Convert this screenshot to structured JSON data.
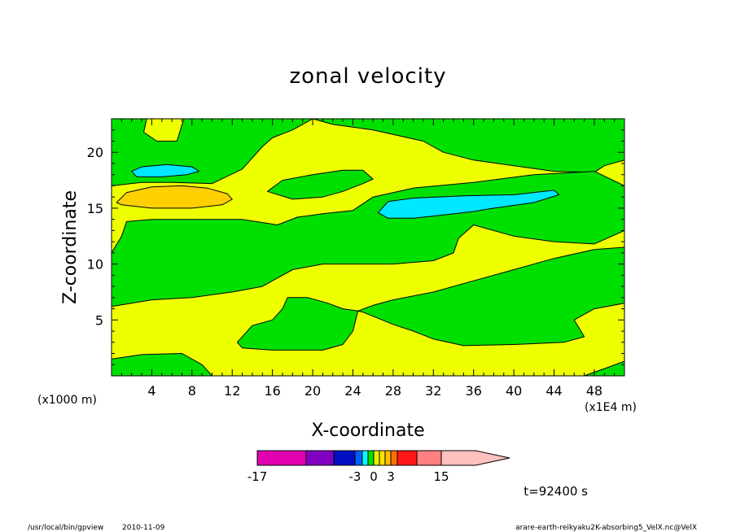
{
  "chart_data": {
    "type": "heatmap",
    "title": "zonal velocity",
    "xlabel": "X-coordinate",
    "ylabel": "Z-coordinate",
    "x_unit": "(x1E4 m)",
    "y_unit": "(x1000 m)",
    "xlim": [
      0,
      51
    ],
    "ylim": [
      0,
      23
    ],
    "x_ticks": [
      4,
      8,
      12,
      16,
      20,
      24,
      28,
      32,
      36,
      40,
      44,
      48
    ],
    "y_ticks": [
      5,
      10,
      15,
      20
    ],
    "colorbar": {
      "levels": [
        -17,
        -13,
        -9,
        -3,
        -2,
        -1,
        0,
        1,
        2,
        3,
        5,
        9,
        15
      ],
      "colors": [
        "#e000b0",
        "#8000c0",
        "#0010c0",
        "#0060ff",
        "#00ffff",
        "#00e000",
        "#e8f000",
        "#ffe000",
        "#ffc000",
        "#ff7000",
        "#ff1818",
        "#ff8080",
        "#ffc0c0"
      ],
      "labels": [
        "-17",
        "-3",
        "0",
        "3",
        "15"
      ]
    },
    "colors": {
      "positive_small": "#eeff00",
      "negative_small": "#00e000",
      "negative_mid": "#00e8ff",
      "positive_mid": "#ffd000"
    },
    "regions": [
      {
        "class": "negative_small",
        "poly": [
          [
            0,
            23
          ],
          [
            3.5,
            23
          ],
          [
            3.2,
            21.8
          ],
          [
            4.5,
            21
          ],
          [
            6.5,
            21
          ],
          [
            7.2,
            23
          ],
          [
            20,
            23
          ],
          [
            18,
            22
          ],
          [
            16,
            21.3
          ],
          [
            15,
            20.5
          ],
          [
            13,
            18.5
          ],
          [
            10,
            17.2
          ],
          [
            6,
            17.3
          ],
          [
            3,
            17.3
          ],
          [
            0,
            17
          ]
        ]
      },
      {
        "class": "negative_small",
        "poly": [
          [
            20,
            23
          ],
          [
            51,
            23
          ],
          [
            51,
            19.3
          ],
          [
            49,
            18.8
          ],
          [
            48,
            18.2
          ],
          [
            44,
            18.3
          ],
          [
            40,
            18.8
          ],
          [
            36,
            19.3
          ],
          [
            33,
            20
          ],
          [
            31,
            21
          ],
          [
            26,
            22
          ],
          [
            22,
            22.5
          ]
        ]
      },
      {
        "class": "negative_small",
        "poly": [
          [
            15.5,
            16.5
          ],
          [
            17,
            17.5
          ],
          [
            20,
            18
          ],
          [
            23,
            18.4
          ],
          [
            25,
            18.4
          ],
          [
            26,
            17.6
          ],
          [
            25,
            17.2
          ],
          [
            23,
            16.5
          ],
          [
            21,
            16
          ],
          [
            18,
            15.8
          ]
        ]
      },
      {
        "class": "negative_small",
        "poly": [
          [
            0,
            11
          ],
          [
            1,
            12.5
          ],
          [
            1.5,
            13.8
          ],
          [
            4,
            14
          ],
          [
            8,
            14
          ],
          [
            13,
            14
          ],
          [
            16.5,
            13.5
          ],
          [
            18.5,
            14.2
          ],
          [
            21,
            14.5
          ],
          [
            24,
            14.8
          ],
          [
            26,
            16
          ],
          [
            30,
            16.8
          ],
          [
            36,
            17.3
          ],
          [
            42,
            18
          ],
          [
            48,
            18.3
          ],
          [
            51,
            17
          ],
          [
            51,
            13
          ],
          [
            48,
            11.8
          ],
          [
            44,
            12
          ],
          [
            40,
            12.5
          ],
          [
            36,
            13.5
          ],
          [
            34.5,
            12.3
          ],
          [
            34,
            11
          ],
          [
            32,
            10.3
          ],
          [
            28,
            10
          ],
          [
            24,
            10
          ],
          [
            21,
            10
          ],
          [
            18,
            9.5
          ],
          [
            16,
            8.5
          ],
          [
            15,
            8
          ],
          [
            12,
            7.5
          ],
          [
            8,
            7
          ],
          [
            4,
            6.8
          ],
          [
            0,
            6.2
          ]
        ]
      },
      {
        "class": "negative_small",
        "poly": [
          [
            12.5,
            3
          ],
          [
            14,
            4.5
          ],
          [
            16,
            5
          ],
          [
            17,
            6
          ],
          [
            17.5,
            7
          ],
          [
            19.5,
            7
          ],
          [
            21.5,
            6.5
          ],
          [
            23,
            6
          ],
          [
            24.5,
            5.8
          ],
          [
            24,
            4
          ],
          [
            23,
            2.8
          ],
          [
            21,
            2.3
          ],
          [
            16,
            2.3
          ],
          [
            13,
            2.5
          ]
        ]
      },
      {
        "class": "negative_small",
        "poly": [
          [
            24.5,
            5.8
          ],
          [
            26,
            6.3
          ],
          [
            28,
            6.8
          ],
          [
            32,
            7.5
          ],
          [
            36,
            8.5
          ],
          [
            40,
            9.5
          ],
          [
            44,
            10.5
          ],
          [
            48,
            11.3
          ],
          [
            51,
            11.5
          ],
          [
            51,
            6.5
          ],
          [
            48,
            6
          ],
          [
            46,
            5
          ],
          [
            47,
            3.5
          ],
          [
            45,
            3
          ],
          [
            40,
            2.8
          ],
          [
            35,
            2.7
          ],
          [
            32,
            3.3
          ],
          [
            30,
            4
          ],
          [
            28,
            4.6
          ],
          [
            25,
            5.7
          ]
        ]
      },
      {
        "class": "negative_small",
        "poly": [
          [
            0,
            0
          ],
          [
            0,
            1.5
          ],
          [
            3,
            1.9
          ],
          [
            7,
            2
          ],
          [
            9,
            1
          ],
          [
            10,
            0
          ]
        ]
      },
      {
        "class": "negative_small",
        "poly": [
          [
            47,
            0
          ],
          [
            49.5,
            0.8
          ],
          [
            51,
            1.3
          ],
          [
            51,
            0
          ]
        ]
      },
      {
        "class": "negative_mid",
        "poly": [
          [
            2,
            18.3
          ],
          [
            3,
            18.7
          ],
          [
            5.5,
            18.9
          ],
          [
            8,
            18.7
          ],
          [
            8.7,
            18.3
          ],
          [
            7.5,
            18
          ],
          [
            5,
            17.8
          ],
          [
            2.5,
            17.8
          ]
        ]
      },
      {
        "class": "negative_mid",
        "poly": [
          [
            26.5,
            14.6
          ],
          [
            27.5,
            15.6
          ],
          [
            30,
            15.9
          ],
          [
            35,
            16.1
          ],
          [
            40,
            16.2
          ],
          [
            44,
            16.6
          ],
          [
            44.5,
            16.2
          ],
          [
            42,
            15.5
          ],
          [
            38,
            15
          ],
          [
            36,
            14.7
          ],
          [
            33,
            14.4
          ],
          [
            30,
            14.1
          ],
          [
            27.5,
            14.1
          ]
        ]
      },
      {
        "class": "positive_mid",
        "poly": [
          [
            0.5,
            15.5
          ],
          [
            1.5,
            16.4
          ],
          [
            4,
            16.9
          ],
          [
            7,
            17
          ],
          [
            9.5,
            16.8
          ],
          [
            11.5,
            16.3
          ],
          [
            12,
            15.8
          ],
          [
            11,
            15.3
          ],
          [
            8,
            15
          ],
          [
            4,
            15
          ],
          [
            1,
            15.3
          ]
        ]
      }
    ]
  },
  "footer": {
    "time": "t=92400 s",
    "program": "/usr/local/bin/gpview",
    "date": "2010-11-09",
    "file": "arare-earth-reikyaku2K-absorbing5_VelX.nc@VelX"
  }
}
